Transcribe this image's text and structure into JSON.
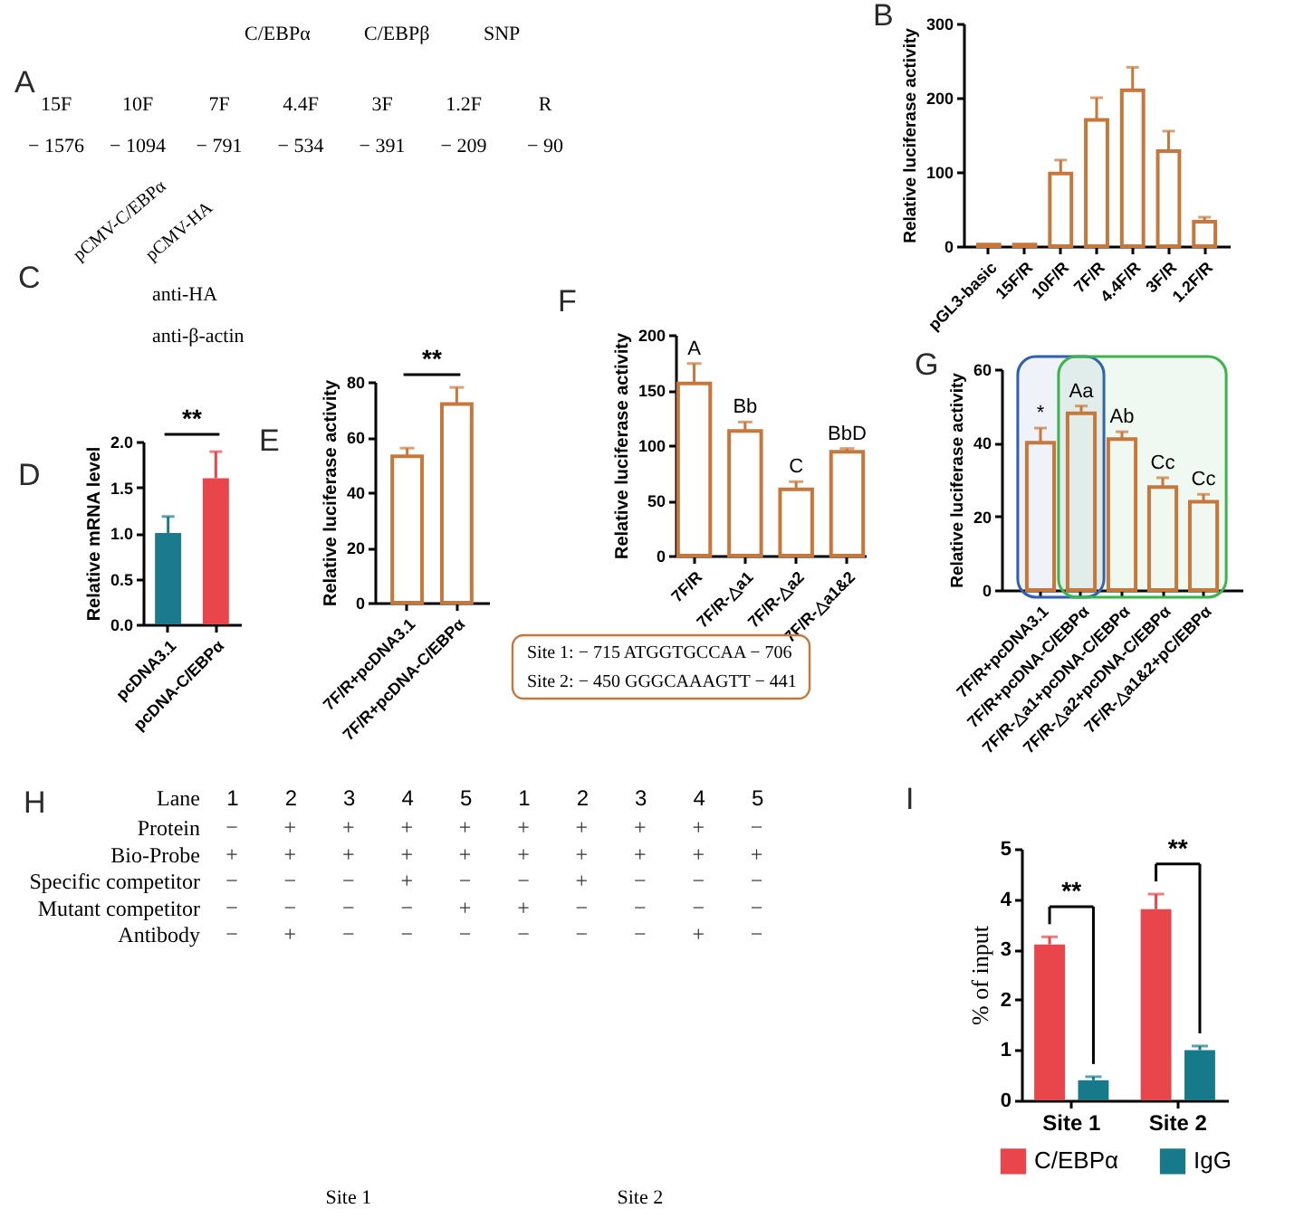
{
  "chart_data": [
    {
      "type": "other",
      "title": "A",
      "categories": [
        "15F",
        "10F",
        "7F",
        "4.4F",
        "3F",
        "1.2F",
        "R"
      ],
      "annotations": [
        "C/EBPα",
        "C/EBPβ",
        "SNP",
        {
          "text": "− 1576",
          "x": "15F"
        },
        {
          "text": "− 1094",
          "x": "10F"
        },
        {
          "text": "− 791",
          "x": "7F"
        },
        {
          "text": "− 534",
          "x": "4.4F"
        },
        {
          "text": "− 391",
          "x": "3F"
        },
        {
          "text": "− 209",
          "x": "1.2F"
        },
        {
          "text": "− 90",
          "x": "R"
        }
      ]
    },
    {
      "type": "bar",
      "title": "B",
      "ylabel": "Relative luciferase activity",
      "categories": [
        "pGL3-basic",
        "15F/R",
        "10F/R",
        "7F/R",
        "4.4F/R",
        "3F/R",
        "1.2F/R"
      ],
      "values": [
        2,
        2,
        98,
        170,
        210,
        128,
        33
      ],
      "errors": [
        null,
        null,
        [
          98,
          116
        ],
        [
          170,
          200
        ],
        [
          210,
          241
        ],
        [
          128,
          155
        ],
        [
          33,
          39
        ]
      ],
      "color": "#c8773a",
      "ylim": [
        0,
        300
      ],
      "yticks": [
        0,
        100,
        200,
        300
      ]
    },
    {
      "type": "other",
      "title": "C",
      "categories": [
        "pCMV-C/EBPα",
        "pCMV-HA"
      ],
      "y_categories": [
        "anti-HA",
        "anti-β-actin"
      ]
    },
    {
      "type": "bar",
      "title": "D",
      "ylabel": "Relative mRNA level",
      "categories": [
        "pcDNA3.1",
        "pcDNA-C/EBPα"
      ],
      "values": [
        1.0,
        1.6
      ],
      "errors": [
        [
          1.0,
          1.18
        ],
        [
          1.6,
          1.89
        ]
      ],
      "colors": [
        "#1b7a8c",
        "#e8464b"
      ],
      "ylim": [
        0,
        2
      ],
      "yticks": [
        {
          "value": 0,
          "label": "0.0"
        },
        0.5,
        {
          "value": 1,
          "label": "1.0"
        },
        1.5,
        {
          "value": 2,
          "label": "2.0"
        }
      ],
      "annotations": [
        "**"
      ]
    },
    {
      "type": "bar",
      "title": "E",
      "ylabel": "Relative luciferase activity",
      "categories": [
        "7F/R+pcDNA3.1",
        "7F/R+pcDNA-C/EBPα"
      ],
      "values": [
        53,
        72
      ],
      "errors": [
        [
          53,
          56
        ],
        [
          72,
          78
        ]
      ],
      "color": "#c8773a",
      "ylim": [
        0,
        80
      ],
      "yticks": [
        0,
        20,
        40,
        60,
        80
      ],
      "annotations": [
        "**"
      ]
    },
    {
      "type": "bar",
      "title": "F",
      "ylabel": "Relative luciferase activity",
      "categories": [
        "7F/R",
        "7F/R-△a1",
        "7F/R-△a2",
        "7F/R-△a1&2"
      ],
      "values": [
        156,
        113,
        60,
        94
      ],
      "errors": [
        [
          156,
          174
        ],
        [
          113,
          121
        ],
        [
          60,
          67
        ],
        [
          94,
          97
        ]
      ],
      "value_labels": [
        "A",
        "Bb",
        "C",
        "BbD"
      ],
      "color": "#c8773a",
      "ylim": [
        0,
        200
      ],
      "yticks": [
        0,
        50,
        100,
        150,
        200
      ],
      "annotations": [
        "Site 1:  − 715 ATGGTGCCAA − 706",
        "Site 2:  − 450 GGGCAAAGTT − 441"
      ]
    },
    {
      "type": "bar",
      "title": "G",
      "ylabel": "Relative luciferase activity",
      "categories": [
        "7F/R+pcDNA3.1",
        "7F/R+pcDNA-C/EBPα",
        "7F/R-△a1+pcDNA-C/EBPα",
        "7F/R-△a2+pcDNA-C/EBPα",
        "7F/R-△a1&2+pC/EBPα"
      ],
      "values": [
        40,
        48,
        41,
        28,
        24
      ],
      "errors": [
        [
          40,
          44
        ],
        [
          48,
          50
        ],
        [
          41,
          43
        ],
        [
          28,
          30.5
        ],
        [
          24,
          26
        ]
      ],
      "value_labels": [
        "*",
        "Aa",
        "Ab",
        "Cc",
        "Cc"
      ],
      "color": "#c8773a",
      "ylim": [
        0,
        60
      ],
      "yticks": [
        0,
        20,
        40,
        60
      ],
      "bands": [
        {
          "axis": "x",
          "from": "7F/R+pcDNA3.1",
          "to": "7F/R+pcDNA-C/EBPα",
          "color": "#2d5fb4"
        },
        {
          "axis": "x",
          "from": "7F/R+pcDNA-C/EBPα",
          "to": "7F/R-△a1&2+pC/EBPα",
          "color": "#3cb44b"
        }
      ]
    },
    {
      "type": "heatmap",
      "title": "H",
      "xlabel": "Lane",
      "categories": [
        "1",
        "2",
        "3",
        "4",
        "5",
        "1",
        "2",
        "3",
        "4",
        "5"
      ],
      "y_categories": [
        "Protein",
        "Bio-Probe",
        "Specific competitor",
        "Mutant competitor",
        "Antibody"
      ],
      "cells": [
        [
          null,
          null,
          null,
          null,
          null,
          null,
          null,
          null,
          null,
          null
        ],
        [
          null,
          null,
          null,
          null,
          null,
          null,
          null,
          null,
          null,
          null
        ],
        [
          null,
          null,
          null,
          null,
          null,
          null,
          null,
          null,
          null,
          null
        ],
        [
          null,
          null,
          null,
          null,
          null,
          null,
          null,
          null,
          null,
          null
        ],
        [
          null,
          null,
          null,
          null,
          null,
          null,
          null,
          null,
          null,
          null
        ]
      ],
      "cell_labels": [
        [
          "−",
          "+",
          "+",
          "+",
          "+",
          "+",
          "+",
          "+",
          "+",
          "−"
        ],
        [
          "+",
          "+",
          "+",
          "+",
          "+",
          "+",
          "+",
          "+",
          "+",
          "+"
        ],
        [
          "−",
          "−",
          "−",
          "+",
          "−",
          "−",
          "+",
          "−",
          "−",
          "−"
        ],
        [
          "−",
          "−",
          "−",
          "−",
          "+",
          "+",
          "−",
          "−",
          "−",
          "−"
        ],
        [
          "−",
          "+",
          "−",
          "−",
          "−",
          "−",
          "−",
          "−",
          "+",
          "−"
        ]
      ],
      "annotations": [
        "Site 1",
        "Site 2"
      ]
    },
    {
      "type": "bar",
      "title": "I",
      "ylabel": "% of input",
      "categories": [
        "Site 1",
        "Site 2"
      ],
      "series": [
        {
          "name": "C/EBPα",
          "color": "#e8464b",
          "values": [
            3.1,
            3.8
          ],
          "errors": [
            [
              3.1,
              3.25
            ],
            [
              3.8,
              4.1
            ]
          ]
        },
        {
          "name": "IgG",
          "color": "#177a8b",
          "values": [
            0.4,
            1.0
          ],
          "errors": [
            [
              0.4,
              0.47
            ],
            [
              1.0,
              1.08
            ]
          ]
        }
      ],
      "ylim": [
        0,
        5
      ],
      "yticks": [
        0,
        1,
        2,
        3,
        4,
        5
      ],
      "legend": "bottom",
      "annotations": [
        "**",
        "**"
      ]
    }
  ]
}
